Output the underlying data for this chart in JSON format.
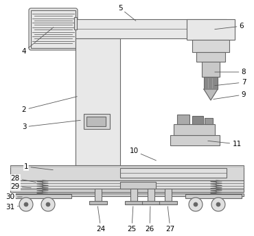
{
  "figsize": [
    3.7,
    3.44
  ],
  "dpi": 100,
  "lc": "#666666",
  "lc2": "#999999",
  "fc_light": "#e8e8e8",
  "fc_mid": "#d0d0d0",
  "fc_dark": "#aaaaaa",
  "fc_darker": "#888888",
  "fc_white": "#f5f5f5"
}
